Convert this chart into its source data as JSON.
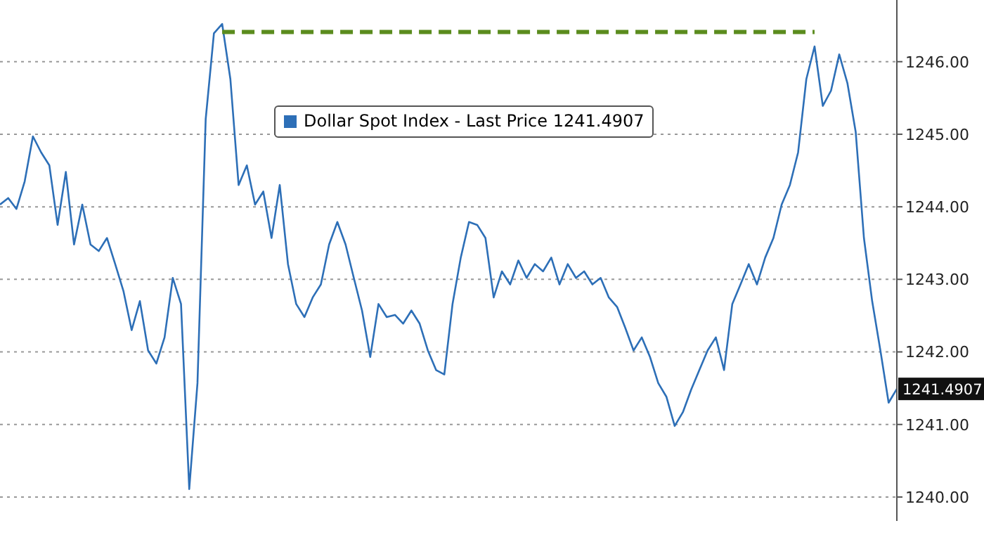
{
  "chart_data": {
    "type": "line",
    "categories": [
      null,
      null,
      null,
      null,
      null,
      null,
      null,
      null,
      null,
      null,
      null,
      null,
      null,
      null,
      null,
      null,
      null,
      null,
      null,
      null,
      null,
      null,
      null,
      null,
      null,
      null,
      null,
      null,
      null,
      null,
      null,
      null,
      null,
      null,
      null,
      null,
      null,
      null,
      null,
      null,
      null,
      null,
      null,
      null,
      null,
      null,
      null,
      null,
      null,
      null,
      null,
      null,
      null,
      null,
      null,
      null,
      null,
      null,
      null,
      null,
      null,
      null,
      null,
      null,
      null,
      null,
      null,
      null,
      null,
      null,
      null,
      null,
      null,
      null,
      null,
      null,
      null,
      null,
      null,
      null,
      null,
      null,
      null,
      null,
      null,
      null,
      null,
      null,
      null,
      null,
      null,
      null,
      null,
      null,
      null,
      null,
      null,
      null,
      null,
      null,
      null,
      null,
      null,
      null,
      null,
      null,
      null,
      null,
      null,
      null
    ],
    "ylim": [
      1239.67,
      1246.85
    ],
    "yticks": [
      {
        "value": 1240,
        "label": "1240.00"
      },
      {
        "value": 1241,
        "label": "1241.00"
      },
      {
        "value": 1242,
        "label": "1242.00"
      },
      {
        "value": 1243,
        "label": "1243.00"
      },
      {
        "value": 1244,
        "label": "1244.00"
      },
      {
        "value": 1245,
        "label": "1245.00"
      },
      {
        "value": 1246,
        "label": "1246.00"
      }
    ],
    "tick_labels": "y",
    "grid": "y",
    "legend": "top",
    "series": [
      {
        "name": "Dollar Spot Index - Last Price 1241.4907",
        "color": "#2d6fb7",
        "values": [
          1244.03,
          1244.12,
          1243.97,
          1244.35,
          1244.97,
          1244.75,
          1244.57,
          1243.75,
          1244.48,
          1243.48,
          1244.03,
          1243.48,
          1243.39,
          1243.57,
          1243.21,
          1242.84,
          1242.3,
          1242.7,
          1242.02,
          1241.84,
          1242.2,
          1243.02,
          1242.66,
          1240.11,
          1241.57,
          1245.21,
          1246.39,
          1246.52,
          1245.76,
          1244.3,
          1244.57,
          1244.03,
          1244.21,
          1243.57,
          1244.3,
          1243.21,
          1242.66,
          1242.48,
          1242.75,
          1242.93,
          1243.48,
          1243.79,
          1243.48,
          1243.02,
          1242.57,
          1241.93,
          1242.66,
          1242.48,
          1242.51,
          1242.39,
          1242.57,
          1242.39,
          1242.02,
          1241.75,
          1241.69,
          1242.66,
          1243.3,
          1243.79,
          1243.75,
          1243.57,
          1242.75,
          1243.11,
          1242.93,
          1243.26,
          1243.02,
          1243.21,
          1243.11,
          1243.3,
          1242.93,
          1243.21,
          1243.02,
          1243.11,
          1242.93,
          1243.02,
          1242.75,
          1242.62,
          1242.33,
          1242.02,
          1242.2,
          1241.93,
          1241.57,
          1241.38,
          1240.98,
          1241.17,
          1241.48,
          1241.75,
          1242.02,
          1242.2,
          1241.75,
          1242.66,
          1242.93,
          1243.21,
          1242.93,
          1243.3,
          1243.57,
          1244.03,
          1244.3,
          1244.75,
          1245.76,
          1246.21,
          1245.39,
          1245.6,
          1246.1,
          1245.7,
          1245.03,
          1243.57,
          1242.7,
          1242.02,
          1241.3,
          1241.49
        ]
      },
      {
        "color": "#5b8c1e",
        "line_style": "dashed",
        "values": [
          null,
          null,
          null,
          null,
          null,
          null,
          null,
          null,
          null,
          null,
          null,
          null,
          null,
          null,
          null,
          null,
          null,
          null,
          null,
          null,
          null,
          null,
          null,
          null,
          null,
          null,
          null,
          1246.41,
          1246.41,
          1246.41,
          1246.41,
          1246.41,
          1246.41,
          1246.41,
          1246.41,
          1246.41,
          1246.41,
          1246.41,
          1246.41,
          1246.41,
          1246.41,
          1246.41,
          1246.41,
          1246.41,
          1246.41,
          1246.41,
          1246.41,
          1246.41,
          1246.41,
          1246.41,
          1246.41,
          1246.41,
          1246.41,
          1246.41,
          1246.41,
          1246.41,
          1246.41,
          1246.41,
          1246.41,
          1246.41,
          1246.41,
          1246.41,
          1246.41,
          1246.41,
          1246.41,
          1246.41,
          1246.41,
          1246.41,
          1246.41,
          1246.41,
          1246.41,
          1246.41,
          1246.41,
          1246.41,
          1246.41,
          1246.41,
          1246.41,
          1246.41,
          1246.41,
          1246.41,
          1246.41,
          1246.41,
          1246.41,
          1246.41,
          1246.41,
          1246.41,
          1246.41,
          1246.41,
          1246.41,
          1246.41,
          1246.41,
          1246.41,
          1246.41,
          1246.41,
          1246.41,
          1246.41,
          1246.41,
          1246.41,
          1246.41,
          1246.41,
          null,
          null,
          null,
          null,
          null,
          null,
          null,
          null,
          null,
          null
        ]
      }
    ],
    "annotations": [
      "1241.4907"
    ]
  }
}
